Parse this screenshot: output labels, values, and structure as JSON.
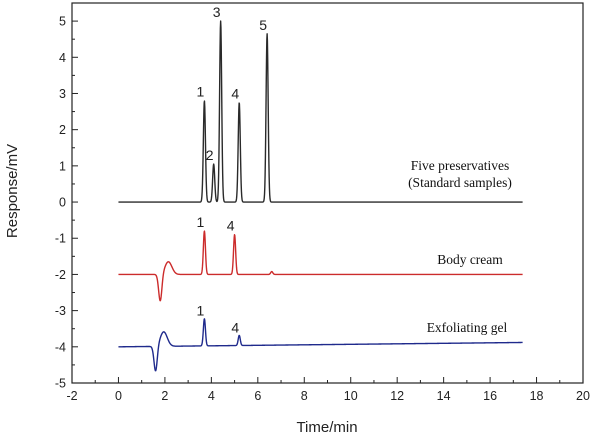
{
  "chart_data": {
    "type": "line",
    "xlabel": "Time/min",
    "ylabel": "Response/mV",
    "xlim": [
      -2,
      20
    ],
    "ylim": [
      -5,
      5.5
    ],
    "xticks": [
      "-2",
      "0",
      "2",
      "4",
      "6",
      "8",
      "10",
      "12",
      "14",
      "16",
      "18",
      "20"
    ],
    "yticks": [
      "-5",
      "-4",
      "-3",
      "-2",
      "-1",
      "0",
      "1",
      "2",
      "3",
      "4",
      "5"
    ],
    "grid": false,
    "series": [
      {
        "name": "Five preservatives (Standard samples)",
        "annotation_lines": [
          "Five preservatives",
          "(Standard samples)"
        ],
        "color": "#2a2a2a",
        "baseline": 0.0,
        "x_range": [
          0,
          17.4
        ],
        "peaks": [
          {
            "label": "1",
            "t": 3.7,
            "height": 2.8
          },
          {
            "label": "2",
            "t": 4.1,
            "height": 1.05
          },
          {
            "label": "3",
            "t": 4.4,
            "height": 5.0
          },
          {
            "label": "4",
            "t": 5.2,
            "height": 2.75
          },
          {
            "label": "5",
            "t": 6.4,
            "height": 4.65
          }
        ],
        "disturbances": []
      },
      {
        "name": "Body cream",
        "annotation_lines": [
          "Body cream"
        ],
        "color": "#cc2b2b",
        "baseline": -2.0,
        "x_range": [
          0,
          17.4
        ],
        "peaks": [
          {
            "label": "1",
            "t": 3.7,
            "height": 1.2
          },
          {
            "label": "4",
            "t": 5.0,
            "height": 1.1
          },
          {
            "label": "",
            "t": 6.6,
            "height": 0.08
          }
        ],
        "disturbances": [
          {
            "t": 1.8,
            "depth": -0.75,
            "rise": 0.35
          }
        ]
      },
      {
        "name": "Exfoliating gel",
        "annotation_lines": [
          "Exfoliating gel"
        ],
        "color": "#1f2a8c",
        "baseline": -4.0,
        "x_range": [
          0,
          17.4
        ],
        "end_value": -3.88,
        "peaks": [
          {
            "label": "1",
            "t": 3.7,
            "height": 0.75
          },
          {
            "label": "4",
            "t": 5.2,
            "height": 0.28
          }
        ],
        "disturbances": [
          {
            "t": 1.6,
            "depth": -0.7,
            "rise": 0.4
          }
        ]
      }
    ]
  }
}
